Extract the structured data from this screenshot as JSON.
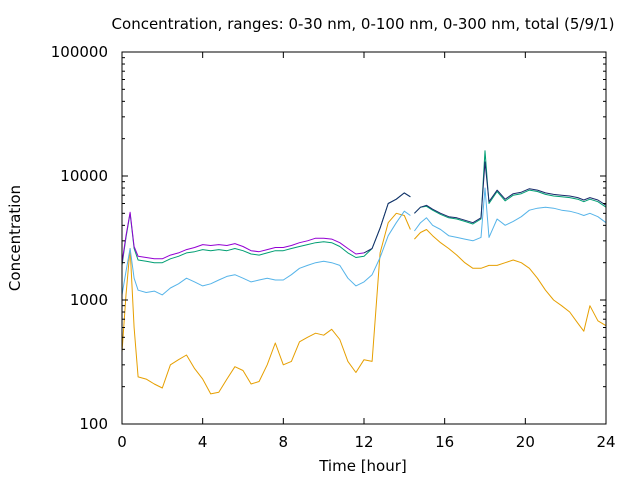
{
  "chart_data": {
    "type": "line",
    "title": "Concentration, ranges: 0-30 nm, 0-100 nm, 0-300 nm, total (5/9/1)",
    "xlabel": "Time [hour]",
    "ylabel": "Concentration",
    "xlim": [
      0,
      24
    ],
    "ylim": [
      100,
      100000
    ],
    "yscale": "log",
    "grid": false,
    "legend": "none",
    "x_ticks": [
      0,
      4,
      8,
      12,
      16,
      20,
      24
    ],
    "x_tick_labels": [
      "0",
      "4",
      "8",
      "12",
      "16",
      "20",
      "24"
    ],
    "y_ticks": [
      100,
      1000,
      10000,
      100000
    ],
    "y_tick_labels": [
      "100",
      "1000",
      "10000",
      "100000"
    ],
    "series": [
      {
        "color": "#e69f00",
        "x": [
          0,
          0.2,
          0.4,
          0.6,
          0.8,
          1.2,
          1.6,
          2.0,
          2.4,
          2.8,
          3.2,
          3.6,
          4.0,
          4.4,
          4.8,
          5.2,
          5.6,
          6.0,
          6.4,
          6.8,
          7.2,
          7.6,
          8.0,
          8.4,
          8.8,
          9.2,
          9.6,
          10.0,
          10.4,
          10.8,
          11.2,
          11.6,
          12.0,
          12.4,
          12.8,
          13.2,
          13.6,
          14.0,
          14.3,
          null,
          14.5,
          14.8,
          15.1,
          15.4,
          15.8,
          16.2,
          16.6,
          17.0,
          17.4,
          17.8,
          18.2,
          18.6,
          19.0,
          19.4,
          19.8,
          20.2,
          20.6,
          21.0,
          21.4,
          21.8,
          22.2,
          22.6,
          22.9,
          23.2,
          23.6,
          24.0
        ],
        "y": [
          380,
          1100,
          2600,
          600,
          240,
          230,
          210,
          195,
          300,
          330,
          360,
          280,
          230,
          175,
          180,
          230,
          290,
          270,
          210,
          220,
          300,
          450,
          300,
          320,
          460,
          500,
          540,
          520,
          580,
          480,
          320,
          260,
          330,
          320,
          2400,
          4200,
          5000,
          4800,
          3700,
          null,
          3100,
          3500,
          3700,
          3300,
          2900,
          2600,
          2300,
          2000,
          1800,
          1800,
          1900,
          1900,
          2000,
          2100,
          2000,
          1800,
          1500,
          1200,
          1000,
          900,
          800,
          650,
          560,
          900,
          680,
          620
        ]
      },
      {
        "color": "#56b4e9",
        "x": [
          0,
          0.2,
          0.4,
          0.6,
          0.8,
          1.2,
          1.6,
          2.0,
          2.4,
          2.8,
          3.2,
          3.6,
          4.0,
          4.4,
          4.8,
          5.2,
          5.6,
          6.0,
          6.4,
          6.8,
          7.2,
          7.6,
          8.0,
          8.4,
          8.8,
          9.2,
          9.6,
          10.0,
          10.4,
          10.8,
          11.2,
          11.6,
          12.0,
          12.4,
          12.8,
          13.2,
          13.6,
          14.0,
          14.3,
          null,
          14.5,
          14.8,
          15.1,
          15.4,
          15.8,
          16.2,
          16.6,
          17.0,
          17.4,
          17.8,
          18.0,
          18.2,
          18.6,
          19.0,
          19.4,
          19.8,
          20.2,
          20.6,
          21.0,
          21.4,
          21.8,
          22.2,
          22.6,
          22.9,
          23.2,
          23.6,
          24.0
        ],
        "y": [
          1100,
          1700,
          2600,
          1500,
          1200,
          1150,
          1180,
          1100,
          1250,
          1350,
          1500,
          1400,
          1300,
          1350,
          1450,
          1550,
          1600,
          1500,
          1400,
          1450,
          1500,
          1450,
          1450,
          1600,
          1800,
          1900,
          2000,
          2050,
          2000,
          1900,
          1500,
          1300,
          1400,
          1600,
          2200,
          3300,
          4200,
          5200,
          4800,
          null,
          3600,
          4200,
          4600,
          4000,
          3700,
          3300,
          3200,
          3100,
          3000,
          3200,
          8000,
          3200,
          4500,
          4000,
          4300,
          4700,
          5300,
          5500,
          5600,
          5500,
          5300,
          5200,
          5000,
          4800,
          5000,
          4700,
          4200
        ]
      },
      {
        "color": "#009e73",
        "x": [
          0,
          0.2,
          0.4,
          0.6,
          0.8,
          1.2,
          1.6,
          2.0,
          2.4,
          2.8,
          3.2,
          3.6,
          4.0,
          4.4,
          4.8,
          5.2,
          5.6,
          6.0,
          6.4,
          6.8,
          7.2,
          7.6,
          8.0,
          8.4,
          8.8,
          9.2,
          9.6,
          10.0,
          10.4,
          10.8,
          11.2,
          11.6,
          12.0,
          12.4,
          12.8,
          13.2,
          13.6,
          14.0,
          14.3,
          null,
          14.5,
          14.8,
          15.1,
          15.4,
          15.8,
          16.2,
          16.6,
          17.0,
          17.4,
          17.8,
          18.0,
          18.2,
          18.6,
          19.0,
          19.4,
          19.8,
          20.2,
          20.6,
          21.0,
          21.4,
          21.8,
          22.2,
          22.6,
          22.9,
          23.2,
          23.6,
          24.0
        ],
        "y": [
          1900,
          3200,
          5000,
          2600,
          2100,
          2050,
          2000,
          2000,
          2150,
          2250,
          2400,
          2450,
          2550,
          2500,
          2550,
          2500,
          2600,
          2500,
          2350,
          2300,
          2400,
          2500,
          2500,
          2600,
          2700,
          2800,
          2900,
          2950,
          2900,
          2700,
          2400,
          2200,
          2250,
          2600,
          3800,
          6000,
          6500,
          7300,
          6800,
          null,
          5000,
          5600,
          5700,
          5300,
          4900,
          4600,
          4500,
          4300,
          4100,
          4500,
          16000,
          6000,
          7500,
          6300,
          7000,
          7200,
          7700,
          7500,
          7100,
          6900,
          6800,
          6700,
          6500,
          6200,
          6500,
          6200,
          5600
        ]
      },
      {
        "color": "#9400d3",
        "x": [
          0,
          0.2,
          0.4,
          0.6,
          0.8,
          1.2,
          1.6,
          2.0,
          2.4,
          2.8,
          3.2,
          3.6,
          4.0,
          4.4,
          4.8,
          5.2,
          5.6,
          6.0,
          6.4,
          6.8,
          7.2,
          7.6,
          8.0,
          8.4,
          8.8,
          9.2,
          9.6,
          10.0,
          10.4,
          10.8,
          11.2,
          11.6,
          12.0
        ],
        "y": [
          2000,
          3300,
          5100,
          2700,
          2250,
          2200,
          2150,
          2150,
          2300,
          2400,
          2550,
          2650,
          2800,
          2750,
          2800,
          2750,
          2850,
          2700,
          2500,
          2450,
          2550,
          2650,
          2650,
          2750,
          2900,
          3000,
          3150,
          3150,
          3100,
          2900,
          2600,
          2350,
          2400
        ]
      },
      {
        "color": "#1a2a6c",
        "x": [
          12.0,
          12.4,
          12.8,
          13.2,
          13.6,
          14.0,
          14.3,
          null,
          14.5,
          14.8,
          15.1,
          15.4,
          15.8,
          16.2,
          16.6,
          17.0,
          17.4,
          17.8,
          18.0,
          18.2,
          18.6,
          19.0,
          19.4,
          19.8,
          20.2,
          20.6,
          21.0,
          21.4,
          21.8,
          22.2,
          22.6,
          22.9,
          23.2,
          23.6,
          24.0
        ],
        "y": [
          2400,
          2600,
          3800,
          6000,
          6500,
          7300,
          6800,
          null,
          5000,
          5600,
          5800,
          5400,
          5000,
          4700,
          4600,
          4400,
          4200,
          4600,
          13000,
          6200,
          7700,
          6500,
          7200,
          7400,
          7900,
          7700,
          7300,
          7100,
          7000,
          6900,
          6700,
          6400,
          6700,
          6400,
          5800
        ]
      }
    ]
  }
}
